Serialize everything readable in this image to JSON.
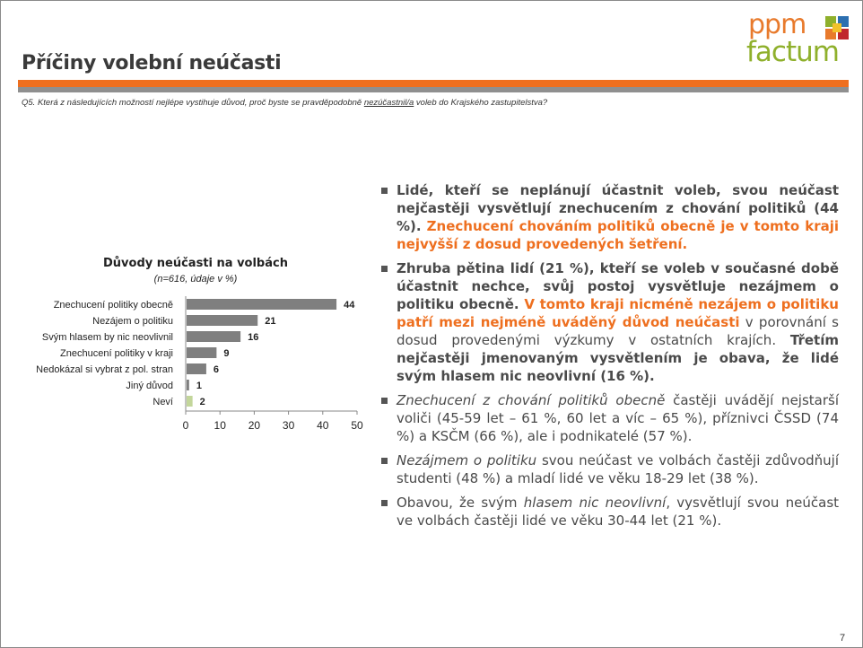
{
  "header": {
    "title": "Příčiny volební neúčasti",
    "logo_top": "ppm",
    "logo_bottom": "factum"
  },
  "question": {
    "prefix": "Q5.  Která z následujících možností nejlépe vystihuje důvod, proč byste se pravděpodobně ",
    "underlined": "nezúčastnil/a",
    "suffix": " voleb do Krajského zastupitelstva?"
  },
  "chart_data": {
    "type": "bar",
    "orientation": "horizontal",
    "title": "Důvody neúčasti na volbách",
    "subtitle": "(n=616, údaje v %)",
    "categories": [
      "Znechucení politiky obecně",
      "Nezájem o politiku",
      "Svým hlasem by nic neovlivnil",
      "Znechucení politiky v kraji",
      "Nedokázal  si vybrat z pol. stran",
      "Jiný důvod",
      "Neví"
    ],
    "values": [
      44,
      21,
      16,
      9,
      6,
      1,
      2
    ],
    "colors": [
      "#7f7f7f",
      "#7f7f7f",
      "#7f7f7f",
      "#7f7f7f",
      "#7f7f7f",
      "#7f7f7f",
      "#c3d69b"
    ],
    "xlim": [
      0,
      50
    ],
    "xticks": [
      0,
      10,
      20,
      30,
      40,
      50
    ],
    "grid": false,
    "legend": "none"
  },
  "bullets": [
    {
      "parts": [
        {
          "t": "Lidé, kteří se neplánují účastnit voleb, svou neúčast nejčastěji vysvětlují znechucením z chování politiků (44 %). ",
          "s": "b"
        },
        {
          "t": "Znechucení chováním politiků obecně je v tomto kraji nejvyšší z dosud provedených šetření.",
          "s": "o"
        }
      ]
    },
    {
      "parts": [
        {
          "t": "Zhruba pětina lidí (21 %), kteří se voleb v současné době účastnit nechce, svůj postoj vysvětluje nezájmem o politiku obecně. ",
          "s": "b"
        },
        {
          "t": "V tomto kraji nicméně nezájem o politiku patří mezi nejméně uváděný důvod neúčasti",
          "s": "o"
        },
        {
          "t": " v porovnání s dosud provedenými výzkumy v ostatních krajích. ",
          "s": ""
        },
        {
          "t": "Třetím nejčastěji jmenovaným vysvětlením je obava, že lidé svým hlasem nic neovlivní (16 %).",
          "s": "b"
        }
      ]
    },
    {
      "parts": [
        {
          "t": "Znechucení z chování politiků obecně",
          "s": "i"
        },
        {
          "t": " častěji uvádějí nejstarší voliči (45-59 let – 61 %, 60 let a víc – 65 %), příznivci  ČSSD (74 %) a KSČM (66 %), ale i podnikatelé (57 %).",
          "s": ""
        }
      ]
    },
    {
      "parts": [
        {
          "t": "Nezájmem o politiku",
          "s": "i"
        },
        {
          "t": " svou neúčast ve volbách častěji zdůvodňují studenti (48 %) a mladí lidé ve věku 18-29 let (38 %).",
          "s": ""
        }
      ]
    },
    {
      "parts": [
        {
          "t": "Obavou, že svým ",
          "s": ""
        },
        {
          "t": "hlasem nic neovlivní",
          "s": "i"
        },
        {
          "t": ", vysvětlují svou neúčast ve volbách častěji lidé ve věku 30-44 let (21 %).",
          "s": ""
        }
      ]
    }
  ],
  "footer": {
    "page_number": "7"
  }
}
